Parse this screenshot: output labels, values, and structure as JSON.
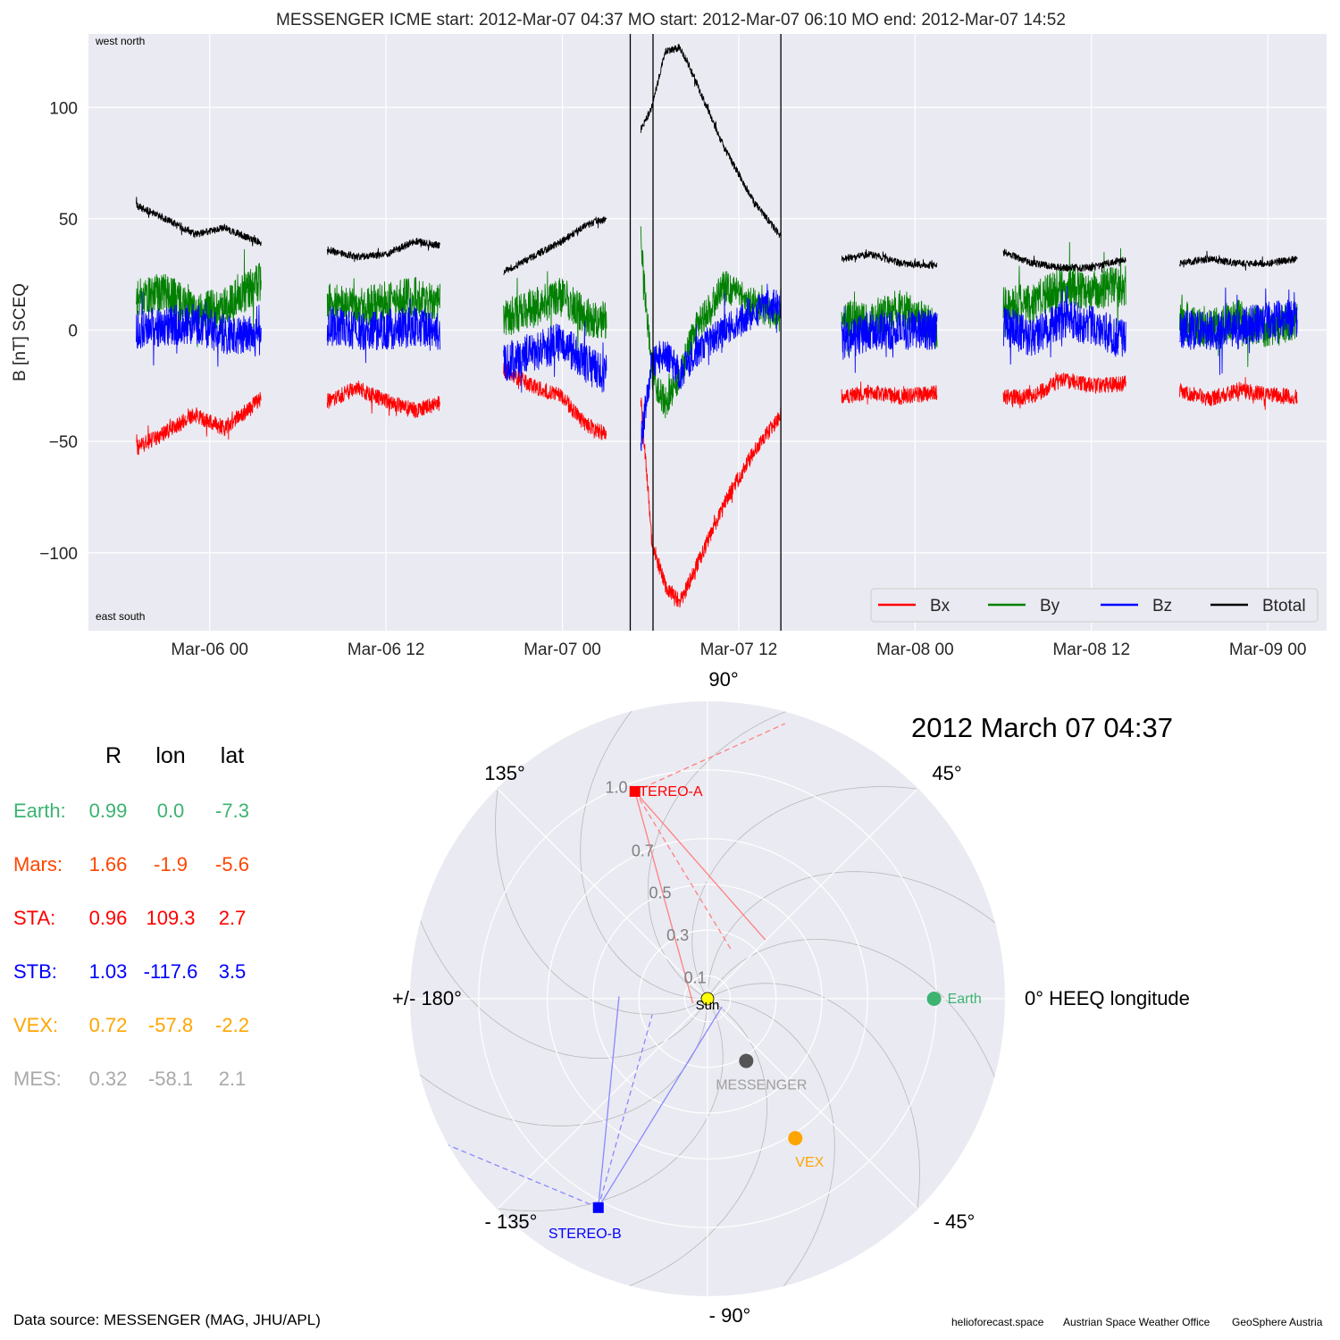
{
  "chart_data": [
    {
      "type": "line",
      "title": "MESSENGER    ICME start: 2012-Mar-07 04:37   MO start: 2012-Mar-07 06:10   MO end: 2012-Mar-07 14:52",
      "ylabel": "B [nT] SCEQ",
      "xlabel": "",
      "xlim": [
        "2012-03-05 15:45",
        "2012-03-09 04:00"
      ],
      "ylim": [
        -135,
        133
      ],
      "grid": true,
      "legend_position": "bottom-right",
      "legend_ncol": 4,
      "x_ticks": [
        "2012-03-06 00:00",
        "2012-03-06 12:00",
        "2012-03-07 00:00",
        "2012-03-07 12:00",
        "2012-03-08 00:00",
        "2012-03-08 12:00",
        "2012-03-09 00:00"
      ],
      "x_tick_labels": [
        "Mar-06 00",
        "Mar-06 12",
        "Mar-07 00",
        "Mar-07 12",
        "Mar-08 00",
        "Mar-08 12",
        "Mar-09 00"
      ],
      "y_ticks": [
        100,
        50,
        0,
        -50,
        -100
      ],
      "y_tick_labels": [
        "100",
        "50",
        "0",
        "−50",
        "−100"
      ],
      "corner_labels": {
        "top": "west    north",
        "bottom": "east    south"
      },
      "vertical_lines": [
        "2012-03-07 04:37",
        "2012-03-07 06:10",
        "2012-03-07 14:52"
      ],
      "segments": [
        {
          "x": [
            "2012-03-05 19:00",
            "2012-03-05 21:00",
            "2012-03-05 23:00",
            "2012-03-06 01:00",
            "2012-03-06 03:30"
          ],
          "Bx": [
            -53,
            -46,
            -38,
            -44,
            -31
          ],
          "By": [
            14,
            17,
            8,
            10,
            22
          ],
          "Bz": [
            0,
            2,
            3,
            -2,
            -3
          ],
          "Btotal": [
            56,
            50,
            43,
            46,
            39
          ]
        },
        {
          "x": [
            "2012-03-06 08:00",
            "2012-03-06 10:00",
            "2012-03-06 12:00",
            "2012-03-06 14:00",
            "2012-03-06 15:40"
          ],
          "Bx": [
            -32,
            -26,
            -32,
            -36,
            -33
          ],
          "By": [
            12,
            10,
            13,
            15,
            12
          ],
          "Bz": [
            2,
            0,
            0,
            2,
            0
          ],
          "Btotal": [
            36,
            33,
            34,
            40,
            38
          ]
        },
        {
          "x": [
            "2012-03-06 20:00",
            "2012-03-06 22:00",
            "2012-03-07 00:00",
            "2012-03-07 01:30",
            "2012-03-07 03:00"
          ],
          "Bx": [
            -18,
            -25,
            -30,
            -42,
            -47
          ],
          "By": [
            5,
            10,
            15,
            6,
            4
          ],
          "Bz": [
            -15,
            -10,
            -5,
            -15,
            -20
          ],
          "Btotal": [
            26,
            33,
            40,
            47,
            50
          ]
        },
        {
          "x": [
            "2012-03-07 05:20",
            "2012-03-07 06:05",
            "2012-03-07 07:00",
            "2012-03-07 08:00",
            "2012-03-07 09:00",
            "2012-03-07 11:00",
            "2012-03-07 13:00",
            "2012-03-07 14:52"
          ],
          "Bx": [
            -30,
            -95,
            -115,
            -122,
            -108,
            -78,
            -55,
            -38
          ],
          "By": [
            40,
            -20,
            -33,
            -20,
            0,
            20,
            12,
            5
          ],
          "Bz": [
            -50,
            -15,
            -10,
            -20,
            -10,
            0,
            8,
            12
          ],
          "Btotal": [
            90,
            100,
            125,
            127,
            113,
            82,
            58,
            42
          ]
        },
        {
          "x": [
            "2012-03-07 19:00",
            "2012-03-07 21:00",
            "2012-03-07 23:00",
            "2012-03-08 01:30"
          ],
          "Bx": [
            -30,
            -28,
            -30,
            -28
          ],
          "By": [
            5,
            3,
            10,
            0
          ],
          "Bz": [
            -5,
            0,
            0,
            0
          ],
          "Btotal": [
            32,
            34,
            30,
            29
          ]
        },
        {
          "x": [
            "2012-03-08 06:00",
            "2012-03-08 08:00",
            "2012-03-08 10:00",
            "2012-03-08 12:00",
            "2012-03-08 14:20"
          ],
          "Bx": [
            -30,
            -30,
            -22,
            -25,
            -24
          ],
          "By": [
            12,
            12,
            20,
            18,
            20
          ],
          "Bz": [
            2,
            -3,
            5,
            2,
            -5
          ],
          "Btotal": [
            35,
            30,
            28,
            28,
            32
          ]
        },
        {
          "x": [
            "2012-03-08 18:00",
            "2012-03-08 20:00",
            "2012-03-08 22:00",
            "2012-03-09 00:00",
            "2012-03-09 02:00"
          ],
          "Bx": [
            -27,
            -31,
            -27,
            -29,
            -30
          ],
          "By": [
            5,
            0,
            5,
            0,
            5
          ],
          "Bz": [
            0,
            0,
            0,
            5,
            5
          ],
          "Btotal": [
            30,
            32,
            30,
            30,
            32
          ]
        }
      ],
      "series": [
        {
          "name": "Bx",
          "color": "#ff0000"
        },
        {
          "name": "By",
          "color": "#008000"
        },
        {
          "name": "Bz",
          "color": "#0000ff"
        },
        {
          "name": "Btotal",
          "color": "#000000"
        }
      ]
    },
    {
      "type": "scatter",
      "projection": "polar",
      "title": "2012 March 07  04:37",
      "r_ticks": [
        0.1,
        0.3,
        0.5,
        0.7,
        1.0
      ],
      "r_tick_labels": [
        "0.1",
        "0.3",
        "0.5",
        "0.7",
        "1.0"
      ],
      "rlim": [
        0,
        1.3
      ],
      "angle_labels": [
        {
          "deg": 0,
          "text": "0° HEEQ longitude"
        },
        {
          "deg": 45,
          "text": "45°"
        },
        {
          "deg": 90,
          "text": "90°"
        },
        {
          "deg": 135,
          "text": "135°"
        },
        {
          "deg": 180,
          "text": "+/- 180°"
        },
        {
          "deg": -135,
          "text": "- 135°"
        },
        {
          "deg": -90,
          "text": "- 90°"
        },
        {
          "deg": -45,
          "text": "- 45°"
        }
      ],
      "bodies": [
        {
          "name": "Sun",
          "r": 0.0,
          "lon": 0.0,
          "color": "#ffff00",
          "label_color": "#000000",
          "marker": "circle"
        },
        {
          "name": "Earth",
          "r": 0.99,
          "lon": 0.0,
          "color": "#3cb371",
          "label_color": "#3cb371",
          "marker": "circle"
        },
        {
          "name": "STEREO-A",
          "r": 0.96,
          "lon": 109.3,
          "color": "#ff0000",
          "label_color": "#ff0000",
          "marker": "square"
        },
        {
          "name": "STEREO-B",
          "r": 1.03,
          "lon": -117.6,
          "color": "#0000ff",
          "label_color": "#0000ff",
          "marker": "square"
        },
        {
          "name": "VEX",
          "r": 0.72,
          "lon": -57.8,
          "color": "#ffa500",
          "label_color": "#ffa500",
          "marker": "circle"
        },
        {
          "name": "MESSENGER",
          "r": 0.32,
          "lon": -58.1,
          "color": "#555555",
          "label_color": "#a0a0a0",
          "marker": "circle"
        }
      ]
    }
  ],
  "position_table": {
    "headers": [
      "R",
      "lon",
      "lat"
    ],
    "rows": [
      {
        "label": "Earth:",
        "R": "0.99",
        "lon": "0.0",
        "lat": "-7.3",
        "color": "#3cb371"
      },
      {
        "label": "Mars:",
        "R": "1.66",
        "lon": "-1.9",
        "lat": "-5.6",
        "color": "#ff4500"
      },
      {
        "label": "STA:",
        "R": "0.96",
        "lon": "109.3",
        "lat": "2.7",
        "color": "#ff0000"
      },
      {
        "label": "STB:",
        "R": "1.03",
        "lon": "-117.6",
        "lat": "3.5",
        "color": "#0000ff"
      },
      {
        "label": "VEX:",
        "R": "0.72",
        "lon": "-57.8",
        "lat": "-2.2",
        "color": "#ffa500"
      },
      {
        "label": "MES:",
        "R": "0.32",
        "lon": "-58.1",
        "lat": "2.1",
        "color": "#a9a9a9"
      }
    ]
  },
  "footer": {
    "data_source": "Data source: MESSENGER (MAG, JHU/APL)",
    "credits": [
      "helioforecast.space",
      "Austrian Space Weather Office",
      "GeoSphere Austria"
    ]
  }
}
